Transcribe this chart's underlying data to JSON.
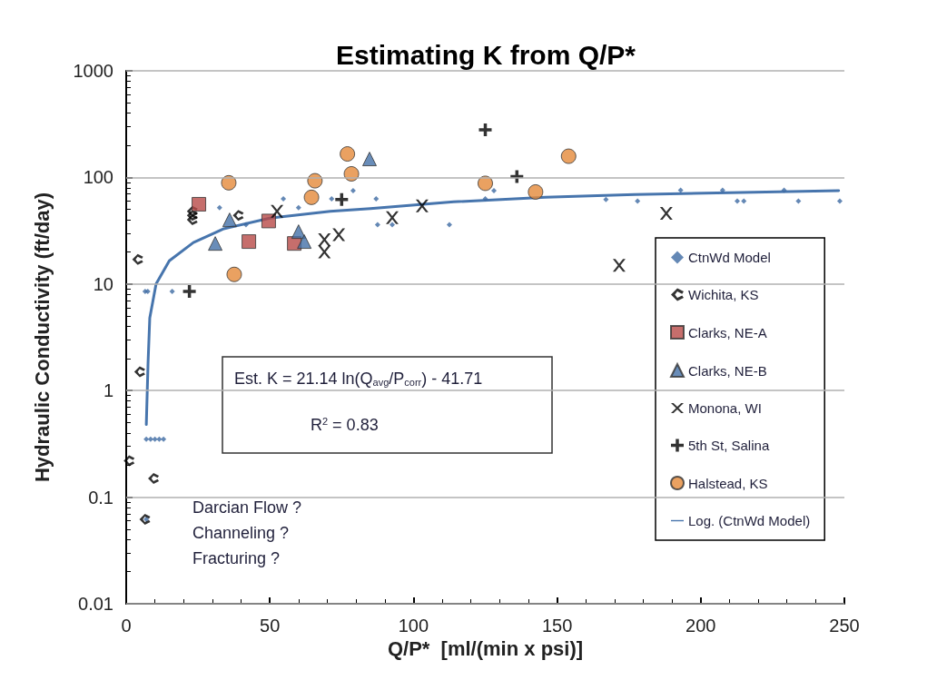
{
  "chart_data": {
    "type": "scatter",
    "title": "Estimating K from Q/P*",
    "xlabel": "Q/P*  [ml/(min x psi)]",
    "ylabel": "Hydraulic Conductivity (ft/day)",
    "log": "y",
    "grid": "y",
    "legend": "right",
    "xlim": [
      0,
      250
    ],
    "xticks": [
      0,
      50,
      100,
      150,
      200,
      250
    ],
    "ylim": [
      0.01,
      1000
    ],
    "yticks": [
      0.01,
      0.1,
      1,
      10,
      100,
      1000
    ],
    "annotations": [
      "Est. K = 21.14 ln(Q$_{avg}$/P$_{corr}$) - 41.71",
      "R$^{2}$ = 0.83",
      "Darcian Flow ?",
      "Channeling ?",
      "Fracturing ?"
    ],
    "series": [
      {
        "name": "CtnWd Model",
        "color": "#3d6aa3",
        "marker": "diamond",
        "x": [
          6.6,
          7.5,
          16,
          32.5,
          54.7,
          60,
          71.5,
          79,
          87,
          87.5,
          92.6,
          112.5,
          125,
          128,
          167,
          178,
          193,
          207.6,
          212.7,
          215,
          229,
          234,
          248.4,
          7,
          8.5,
          10,
          11.5,
          13,
          41.7,
          7
        ],
        "values": [
          8.5,
          8.5,
          8.5,
          52,
          63,
          52,
          63,
          75,
          63,
          36,
          36,
          36,
          63,
          75,
          62,
          60,
          76,
          76,
          60,
          60,
          76,
          60,
          60,
          0.35,
          0.35,
          0.35,
          0.35,
          0.35,
          36,
          0.062
        ]
      },
      {
        "name": "Wichita, KS",
        "color": "#000000",
        "x": [
          4,
          23,
          23,
          23,
          39,
          4.7,
          1,
          9.5,
          6.5
        ],
        "values": [
          17,
          40,
          44,
          48,
          44,
          1.5,
          0.22,
          0.15,
          0.062
        ]
      },
      {
        "name": "Clarks, NE-A",
        "color": "#b84a47",
        "marker": "square",
        "x": [
          25.3,
          42.7,
          49.6,
          58.5
        ],
        "values": [
          56,
          25,
          39,
          24
        ]
      },
      {
        "name": "Clarks, NE-B",
        "color": "#4470a8",
        "marker": "triangle",
        "x": [
          31,
          36,
          60,
          62,
          84.7
        ],
        "values": [
          24,
          40,
          31,
          25,
          149
        ]
      },
      {
        "name": "Monona, WI",
        "color": "#000000",
        "marker": "cross",
        "x": [
          52.5,
          69,
          69,
          74,
          92.6,
          103,
          171.6,
          188
        ],
        "values": [
          48,
          26,
          20,
          29,
          42,
          54,
          15,
          46
        ]
      },
      {
        "name": "5th St, Salina",
        "color": "#000000",
        "marker": "plus",
        "x": [
          22,
          75,
          125,
          136
        ],
        "values": [
          8.5,
          62,
          280,
          102
        ]
      },
      {
        "name": "Halstead, KS",
        "color": "#e58a3a",
        "marker": "circle",
        "x": [
          35.7,
          37.6,
          65.7,
          64.5,
          77,
          78.4,
          125,
          142.5,
          154
        ],
        "values": [
          89,
          12.3,
          93,
          65,
          166,
          108,
          88,
          73,
          158
        ]
      },
      {
        "name": "Log. (CtnWd Model)",
        "type": "line",
        "color": "#4775ad",
        "marker": "none",
        "line_style": "solid",
        "x": [
          7,
          7.6,
          8.2,
          10.4,
          15,
          23.4,
          34,
          50,
          71,
          85,
          114,
          146,
          177,
          210,
          248
        ],
        "values": [
          0.48,
          1.8,
          4.8,
          10,
          16.5,
          24.5,
          33,
          41.5,
          48,
          51,
          59,
          65,
          69,
          72,
          75
        ]
      }
    ]
  }
}
